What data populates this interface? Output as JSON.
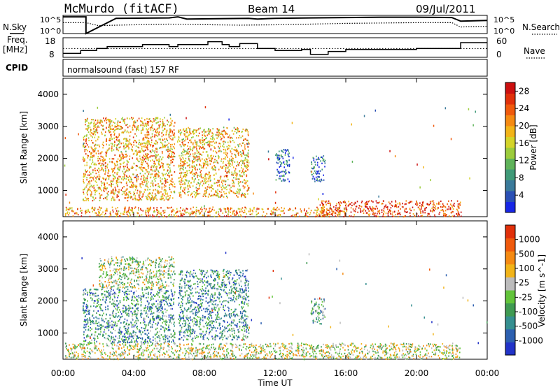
{
  "header": {
    "station": "McMurdo (fitACF)",
    "beam": "Beam 14",
    "date": "09/Jul/2011"
  },
  "summary": {
    "nsky_label": "N.Sky",
    "nsearch_label": "N.Search",
    "freq_label_1": "Freq.",
    "freq_label_2": "[MHz]",
    "nave_label": "Nave",
    "cpid_label": "CPID",
    "cpid_value": "normalsound (fast) 157 RF",
    "noise_ticks_left": [
      "10^5",
      "10^0"
    ],
    "noise_ticks_right": [
      "10^5",
      "10^0"
    ],
    "freq_ticks": [
      "18",
      "8"
    ],
    "nave_ticks": [
      "60",
      "0"
    ]
  },
  "chart_data": [
    {
      "type": "line",
      "name": "noise",
      "x_unit": "hours UT",
      "series": [
        {
          "name": "N.Sky",
          "x": [
            0,
            1.3,
            1.3,
            3,
            6,
            6.5,
            7,
            10.5,
            11,
            12,
            14,
            16,
            18,
            20,
            22,
            22.5,
            24
          ],
          "y": [
            4.6,
            4.6,
            0,
            4.2,
            4.3,
            4.6,
            4.0,
            4.2,
            4.0,
            4.2,
            4.3,
            4.4,
            4.5,
            4.5,
            4.4,
            3.4,
            3.6
          ]
        },
        {
          "name": "N.Search",
          "x": [
            0,
            1.3,
            2,
            4,
            6,
            7,
            10,
            12,
            14,
            16,
            18,
            20,
            22,
            22.5,
            24
          ],
          "y": [
            3.0,
            3.0,
            2.2,
            2.4,
            2.6,
            2.5,
            2.3,
            2.4,
            2.6,
            2.8,
            2.9,
            3.0,
            3.0,
            1.8,
            2.0
          ]
        }
      ],
      "ylim": [
        0,
        5
      ]
    },
    {
      "type": "line",
      "name": "frequency",
      "x_unit": "hours UT",
      "series": [
        {
          "name": "Freq.",
          "x": [
            0,
            1,
            1,
            1.9,
            1.9,
            2.5,
            2.5,
            4.5,
            4.5,
            6,
            6,
            6.5,
            6.5,
            8.2,
            8.2,
            9,
            9,
            9.4,
            9.4,
            10,
            10,
            11,
            11,
            12,
            12,
            13.5,
            13.5,
            14,
            14,
            15,
            15,
            16,
            16,
            20,
            20,
            22.5,
            22.5,
            24
          ],
          "y": [
            10,
            10,
            11.5,
            11.5,
            12.5,
            12.5,
            13.5,
            13.5,
            14.5,
            14.5,
            13.5,
            13.5,
            14.5,
            14.5,
            16,
            16,
            14.5,
            14.5,
            13.5,
            13.5,
            15,
            15,
            12.5,
            12.5,
            11.5,
            11.5,
            12,
            12,
            9.5,
            9.5,
            11,
            11,
            12,
            12,
            12.5,
            12.5,
            15.5,
            15.5
          ]
        },
        {
          "name": "Nave",
          "x": [
            0,
            24
          ],
          "y": [
            27,
            27
          ]
        }
      ],
      "ylim_freq": [
        8,
        18
      ],
      "ylim_nave": [
        0,
        60
      ]
    },
    {
      "type": "heatmap",
      "name": "power",
      "xlabel": "",
      "ylabel": "Slant Range [km]",
      "xlim": [
        0,
        24
      ],
      "ylim": [
        180,
        4500
      ],
      "yticks": [
        1000,
        2000,
        3000,
        4000
      ],
      "colorbar": {
        "label": "Power [dB]",
        "ticks": [
          "4",
          "8",
          "12",
          "16",
          "20",
          "24",
          "28"
        ],
        "range": [
          0,
          30
        ],
        "colors": [
          "#1726e6",
          "#2a50b5",
          "#3a7a9a",
          "#3f9a78",
          "#5fb35a",
          "#9ccc3c",
          "#d4d429",
          "#f2b418",
          "#f58a12",
          "#f05a0c",
          "#e1300a",
          "#cc1010"
        ]
      },
      "regions": [
        {
          "x": [
            1.1,
            6.3
          ],
          "y": [
            700,
            3300
          ],
          "level": 0.65
        },
        {
          "x": [
            6.5,
            10.5
          ],
          "y": [
            800,
            3000
          ],
          "level": 0.62
        },
        {
          "x": [
            12.0,
            12.8
          ],
          "y": [
            1300,
            2300
          ],
          "level": 0.15
        },
        {
          "x": [
            14.0,
            14.8
          ],
          "y": [
            1300,
            2100
          ],
          "level": 0.15
        },
        {
          "x": [
            14.5,
            22.5
          ],
          "y": [
            200,
            700
          ],
          "level": 0.85
        },
        {
          "x": [
            0.1,
            16.0
          ],
          "y": [
            200,
            500
          ],
          "level": 0.7
        }
      ]
    },
    {
      "type": "heatmap",
      "name": "velocity",
      "xlabel": "Time UT",
      "ylabel": "Slant Range [km]",
      "xlim": [
        0,
        24
      ],
      "ylim": [
        180,
        4500
      ],
      "yticks": [
        1000,
        2000,
        3000,
        4000
      ],
      "xticks": [
        "00:00",
        "04:00",
        "08:00",
        "12:00",
        "16:00",
        "20:00",
        "00:00"
      ],
      "colorbar": {
        "label": "Velocity [m s^-1]",
        "ticks": [
          "1000",
          "500",
          "100",
          "25",
          "-25",
          "-100",
          "-500",
          "-1000"
        ],
        "colors": [
          "#2233c8",
          "#2d60b0",
          "#358f90",
          "#3f9a52",
          "#62c43a",
          "#bcbcbc",
          "#f2b418",
          "#f58a12",
          "#f05a0c",
          "#e1300a"
        ]
      },
      "regions": [
        {
          "x": [
            1.1,
            6.3
          ],
          "y": [
            700,
            2400
          ],
          "level": 0.3
        },
        {
          "x": [
            2.0,
            6.3
          ],
          "y": [
            2400,
            3400
          ],
          "level": 0.5
        },
        {
          "x": [
            6.5,
            10.5
          ],
          "y": [
            800,
            3000
          ],
          "level": 0.3
        },
        {
          "x": [
            14.0,
            14.8
          ],
          "y": [
            1300,
            2100
          ],
          "level": 0.35
        },
        {
          "x": [
            0.1,
            22.5
          ],
          "y": [
            200,
            700
          ],
          "level": 0.55
        }
      ]
    }
  ]
}
